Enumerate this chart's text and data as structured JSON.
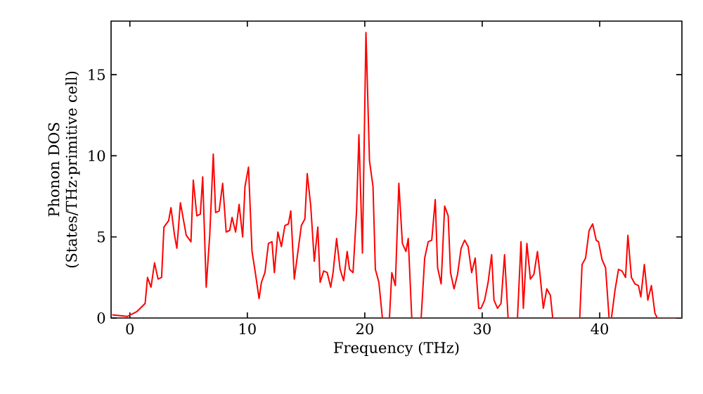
{
  "chart_data": {
    "type": "line",
    "xlabel": "Frequency (THz)",
    "ylabel": "Phonon DOS (States/THz·primitive cell)",
    "xlim": [
      -1.6,
      47.0
    ],
    "ylim": [
      0,
      18.3
    ],
    "xticks": [
      0,
      10,
      20,
      30,
      40
    ],
    "yticks": [
      0,
      5,
      10,
      15
    ],
    "grid": false,
    "marker": "none",
    "line_style": "solid",
    "series": [
      {
        "color": "#ff0000",
        "x": [
          -1.5,
          -0.2,
          0.6,
          1.3,
          1.5,
          1.8,
          2.1,
          2.4,
          2.7,
          2.9,
          3.3,
          3.5,
          3.8,
          4.0,
          4.3,
          4.6,
          4.8,
          5.2,
          5.4,
          5.7,
          6.0,
          6.2,
          6.5,
          6.8,
          7.1,
          7.3,
          7.6,
          7.9,
          8.2,
          8.5,
          8.7,
          9.0,
          9.3,
          9.6,
          9.8,
          10.1,
          10.4,
          10.7,
          11.0,
          11.2,
          11.5,
          11.8,
          12.1,
          12.3,
          12.6,
          12.9,
          13.2,
          13.5,
          13.7,
          14.0,
          14.4,
          14.6,
          14.9,
          15.1,
          15.4,
          15.7,
          16.0,
          16.2,
          16.5,
          16.8,
          17.1,
          17.3,
          17.6,
          17.9,
          18.2,
          18.5,
          18.7,
          19.0,
          19.3,
          19.5,
          19.8,
          20.1,
          20.4,
          20.7,
          20.9,
          21.2,
          21.5,
          21.8,
          22.1,
          22.3,
          22.6,
          22.9,
          23.2,
          23.5,
          23.7,
          24.0,
          24.3,
          24.8,
          25.1,
          25.4,
          25.7,
          26.0,
          26.2,
          26.5,
          26.8,
          27.1,
          27.3,
          27.6,
          27.9,
          28.2,
          28.5,
          28.8,
          29.1,
          29.4,
          29.7,
          29.9,
          30.2,
          30.5,
          30.8,
          31.0,
          31.3,
          31.6,
          31.9,
          32.2,
          33.0,
          33.3,
          33.5,
          33.8,
          34.1,
          34.4,
          34.7,
          34.9,
          35.2,
          35.5,
          35.8,
          36.0,
          38.3,
          38.5,
          38.8,
          39.1,
          39.4,
          39.7,
          39.9,
          40.2,
          40.5,
          40.8,
          41.0,
          41.3,
          41.6,
          41.9,
          42.2,
          42.4,
          42.7,
          43.0,
          43.3,
          43.5,
          43.8,
          44.1,
          44.4,
          44.7,
          44.9,
          47.0
        ],
        "values": [
          0.2,
          0.1,
          0.4,
          0.9,
          2.5,
          1.9,
          3.4,
          2.4,
          2.5,
          5.6,
          6.0,
          6.8,
          5.1,
          4.3,
          7.1,
          5.9,
          5.1,
          4.7,
          8.5,
          6.3,
          6.4,
          8.7,
          1.9,
          5.1,
          10.1,
          6.5,
          6.6,
          8.3,
          5.3,
          5.4,
          6.2,
          5.3,
          7.0,
          5.0,
          8.1,
          9.3,
          4.1,
          2.7,
          1.2,
          2.2,
          2.8,
          4.6,
          4.7,
          2.8,
          5.3,
          4.4,
          5.7,
          5.8,
          6.6,
          2.4,
          4.6,
          5.7,
          6.1,
          8.9,
          6.9,
          3.5,
          5.6,
          2.2,
          2.9,
          2.8,
          1.9,
          2.8,
          4.9,
          3.0,
          2.3,
          4.1,
          3.0,
          2.8,
          6.6,
          11.3,
          4.0,
          17.6,
          9.7,
          8.1,
          3.0,
          2.2,
          0,
          0,
          0,
          2.8,
          2.0,
          8.3,
          4.6,
          4.1,
          4.9,
          0,
          0,
          0,
          3.7,
          4.7,
          4.8,
          7.3,
          3.1,
          2.1,
          6.9,
          6.3,
          2.8,
          1.8,
          2.7,
          4.3,
          4.8,
          4.4,
          2.8,
          3.7,
          0.6,
          0.6,
          1.1,
          2.2,
          3.9,
          1.1,
          0.6,
          0.9,
          3.9,
          0,
          0,
          4.7,
          0.6,
          4.6,
          2.4,
          2.7,
          4.1,
          2.8,
          0.6,
          1.8,
          1.4,
          0,
          0,
          3.3,
          3.7,
          5.4,
          5.8,
          4.8,
          4.7,
          3.6,
          3.1,
          0,
          0,
          1.7,
          3.0,
          2.9,
          2.5,
          5.1,
          2.5,
          2.1,
          2.0,
          1.3,
          3.3,
          1.1,
          2.0,
          0.3,
          0,
          0
        ]
      }
    ]
  }
}
